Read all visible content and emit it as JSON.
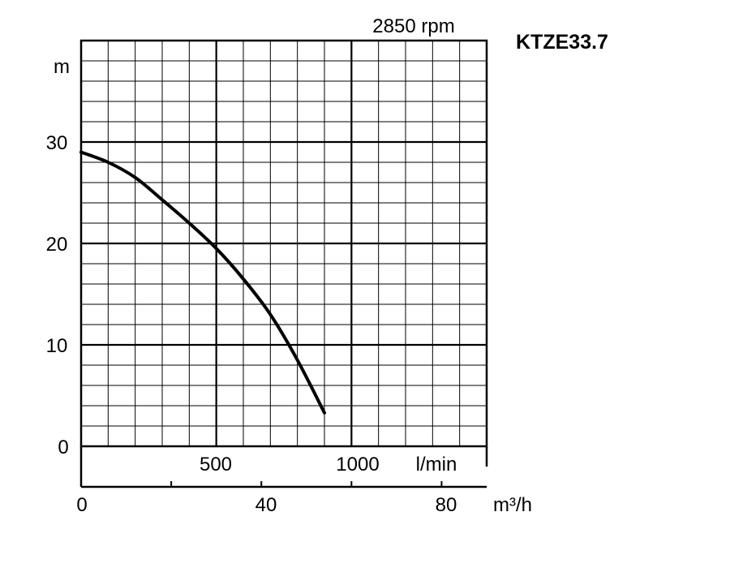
{
  "chart_data": {
    "type": "line",
    "title": "KTZE33.7",
    "subtitle": "2850 rpm",
    "ylabel": "m",
    "xlabel_primary": "l/min",
    "xlabel_secondary": "m³/h",
    "ylim": [
      0,
      40
    ],
    "xlim_lmin": [
      0,
      1500
    ],
    "xlim_m3h": [
      0,
      90
    ],
    "y_ticks": [
      "0",
      "10",
      "20",
      "30"
    ],
    "x_ticks_lmin": [
      "500",
      "1000"
    ],
    "x_ticks_m3h": [
      "0",
      "40",
      "80"
    ],
    "grid": true,
    "series": [
      {
        "x_lmin": [
          0,
          100,
          200,
          300,
          400,
          500,
          600,
          700,
          800,
          900
        ],
        "y_m": [
          29,
          28,
          26.5,
          24.3,
          22,
          19.5,
          16.5,
          13,
          8.5,
          3.3
        ]
      }
    ]
  }
}
